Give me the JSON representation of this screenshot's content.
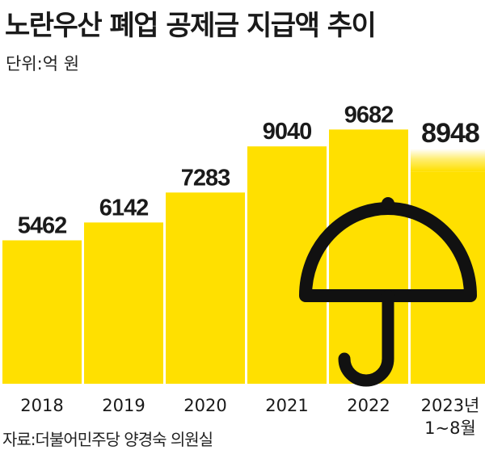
{
  "title": "노란우산 폐업 공제금 지급액 추이",
  "unit": "단위:억 원",
  "source": "자료:더불어민주당 양경숙 의원실",
  "colors": {
    "bar": "#FFE000",
    "text": "#1a1a1a",
    "umbrella": "#111111"
  },
  "chart_data": {
    "type": "bar",
    "categories": [
      "2018",
      "2019",
      "2020",
      "2021",
      "2022",
      "2023년\n1~8월"
    ],
    "values": [
      5462,
      6142,
      7283,
      9040,
      9682,
      8948
    ],
    "data_labels": [
      "5462",
      "6142",
      "7283",
      "9040",
      "9682",
      "8948"
    ],
    "highlight_last": true,
    "title": "노란우산 폐업 공제금 지급액 추이",
    "unit": "단위:억 원",
    "ylim": [
      0,
      10000
    ],
    "grid": false,
    "legend": "none",
    "decoration": "umbrella-icon"
  }
}
